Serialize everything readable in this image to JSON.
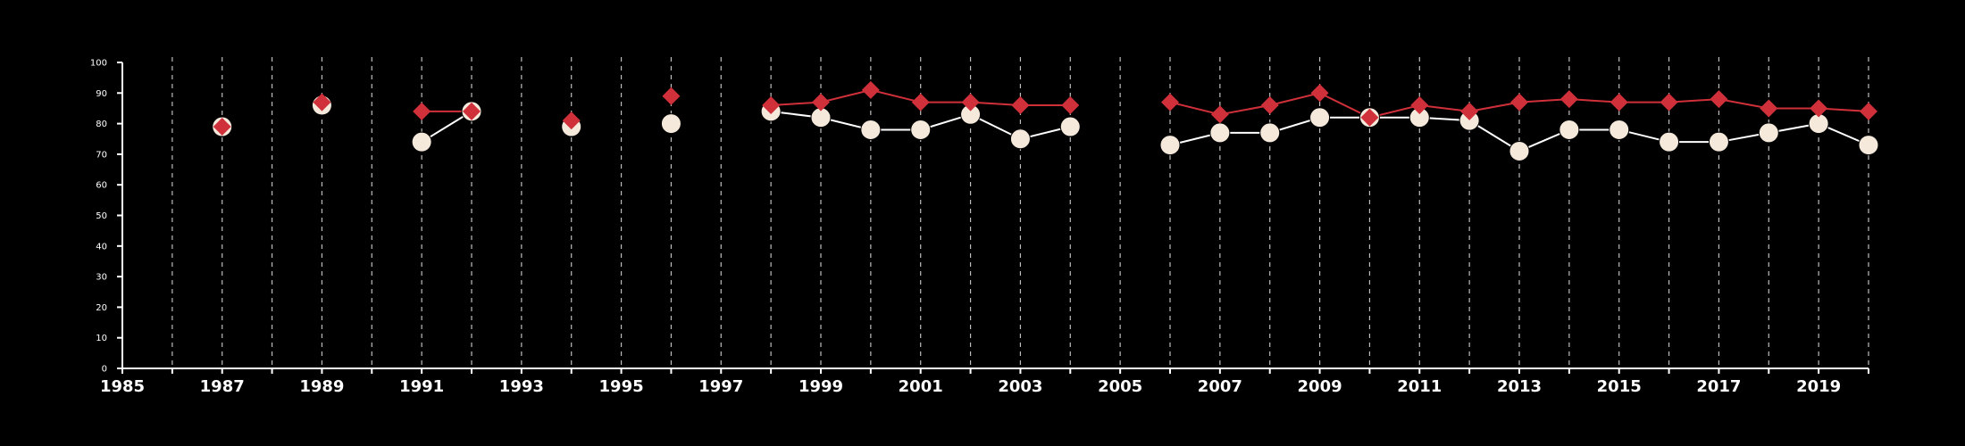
{
  "chart_data": {
    "type": "line",
    "xlim": [
      1985,
      2020
    ],
    "ylim": [
      0,
      100
    ],
    "x_ticks": [
      1985,
      1987,
      1989,
      1991,
      1993,
      1995,
      1997,
      1999,
      2001,
      2003,
      2005,
      2007,
      2009,
      2011,
      2013,
      2015,
      2017,
      2019
    ],
    "y_ticks": [
      0,
      10,
      20,
      30,
      40,
      50,
      60,
      70,
      80,
      90,
      100
    ],
    "grid": "vertical dashed, yearly",
    "legend": "none",
    "series": [
      {
        "marker": "diamond",
        "color": "#d0303a",
        "points": [
          [
            1987,
            79
          ],
          [
            1989,
            87
          ],
          [
            1991,
            84
          ],
          [
            1992,
            84
          ],
          [
            1994,
            81
          ],
          [
            1996,
            89
          ],
          [
            1998,
            86
          ],
          [
            1999,
            87
          ],
          [
            2000,
            91
          ],
          [
            2001,
            87
          ],
          [
            2002,
            87
          ],
          [
            2003,
            86
          ],
          [
            2004,
            86
          ],
          [
            2006,
            87
          ],
          [
            2007,
            83
          ],
          [
            2008,
            86
          ],
          [
            2009,
            90
          ],
          [
            2010,
            82
          ],
          [
            2011,
            86
          ],
          [
            2012,
            84
          ],
          [
            2013,
            87
          ],
          [
            2014,
            88
          ],
          [
            2015,
            87
          ],
          [
            2016,
            87
          ],
          [
            2017,
            88
          ],
          [
            2018,
            85
          ],
          [
            2019,
            85
          ],
          [
            2020,
            84
          ]
        ]
      },
      {
        "marker": "circle",
        "color": "#f5e9dc",
        "points": [
          [
            1987,
            79
          ],
          [
            1989,
            86
          ],
          [
            1991,
            74
          ],
          [
            1992,
            84
          ],
          [
            1994,
            79
          ],
          [
            1996,
            80
          ],
          [
            1998,
            84
          ],
          [
            1999,
            82
          ],
          [
            2000,
            78
          ],
          [
            2001,
            78
          ],
          [
            2002,
            83
          ],
          [
            2003,
            75
          ],
          [
            2004,
            79
          ],
          [
            2006,
            73
          ],
          [
            2007,
            77
          ],
          [
            2008,
            77
          ],
          [
            2009,
            82
          ],
          [
            2010,
            82
          ],
          [
            2011,
            82
          ],
          [
            2012,
            81
          ],
          [
            2013,
            71
          ],
          [
            2014,
            78
          ],
          [
            2015,
            78
          ],
          [
            2016,
            74
          ],
          [
            2017,
            74
          ],
          [
            2018,
            77
          ],
          [
            2019,
            80
          ],
          [
            2020,
            73
          ]
        ]
      }
    ]
  }
}
